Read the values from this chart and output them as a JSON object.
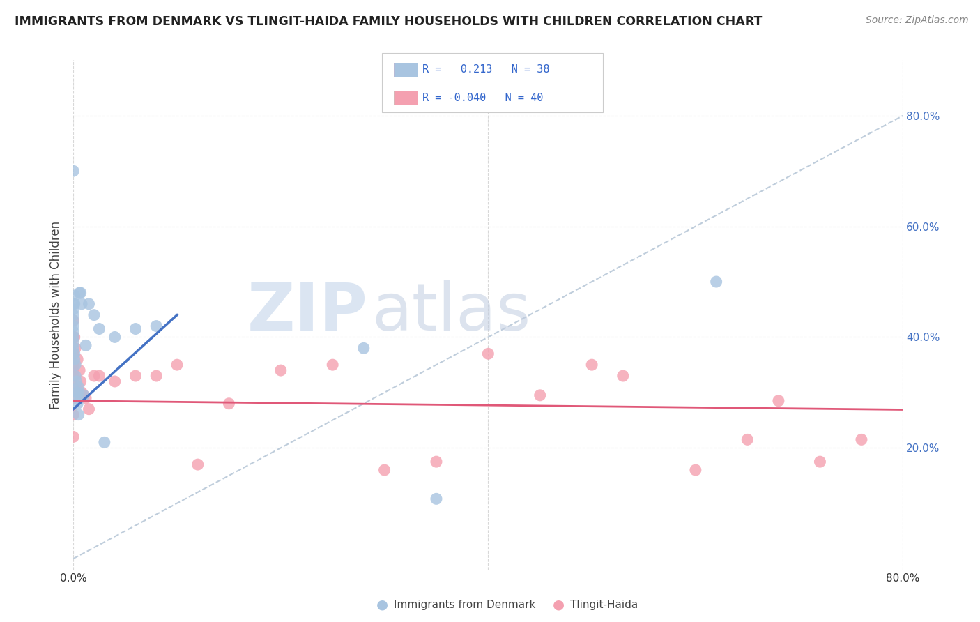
{
  "title": "IMMIGRANTS FROM DENMARK VS TLINGIT-HAIDA FAMILY HOUSEHOLDS WITH CHILDREN CORRELATION CHART",
  "source": "Source: ZipAtlas.com",
  "ylabel": "Family Households with Children",
  "legend_label1": "Immigrants from Denmark",
  "legend_label2": "Tlingit-Haida",
  "R1": 0.213,
  "N1": 38,
  "R2": -0.04,
  "N2": 40,
  "xlim": [
    0.0,
    0.8
  ],
  "ylim": [
    -0.02,
    0.9
  ],
  "color_blue": "#a8c4e0",
  "color_pink": "#f4a0b0",
  "line_color_blue": "#4472c4",
  "line_color_pink": "#e05878",
  "trendline_gray_color": "#b8c8d8",
  "watermark_zip": "ZIP",
  "watermark_atlas": "atlas",
  "grid_color": "#d8d8d8",
  "bg_color": "#ffffff",
  "blue_scatter_x": [
    0.0,
    0.0,
    0.0,
    0.0,
    0.0,
    0.0,
    0.0,
    0.0,
    0.0,
    0.0,
    0.001,
    0.001,
    0.001,
    0.001,
    0.002,
    0.002,
    0.003,
    0.003,
    0.004,
    0.004,
    0.005,
    0.005,
    0.005,
    0.006,
    0.007,
    0.008,
    0.01,
    0.012,
    0.015,
    0.02,
    0.025,
    0.03,
    0.04,
    0.06,
    0.08,
    0.28,
    0.35,
    0.62
  ],
  "blue_scatter_y": [
    0.7,
    0.46,
    0.45,
    0.44,
    0.43,
    0.42,
    0.41,
    0.4,
    0.39,
    0.38,
    0.475,
    0.46,
    0.37,
    0.36,
    0.35,
    0.33,
    0.32,
    0.3,
    0.29,
    0.28,
    0.31,
    0.3,
    0.26,
    0.48,
    0.48,
    0.46,
    0.295,
    0.385,
    0.46,
    0.44,
    0.415,
    0.21,
    0.4,
    0.415,
    0.42,
    0.38,
    0.108,
    0.5
  ],
  "pink_scatter_x": [
    0.0,
    0.0,
    0.0,
    0.0,
    0.0,
    0.0,
    0.0,
    0.0,
    0.0,
    0.0,
    0.001,
    0.002,
    0.004,
    0.006,
    0.007,
    0.008,
    0.01,
    0.012,
    0.015,
    0.02,
    0.025,
    0.04,
    0.06,
    0.08,
    0.1,
    0.12,
    0.15,
    0.2,
    0.25,
    0.3,
    0.35,
    0.4,
    0.45,
    0.5,
    0.53,
    0.6,
    0.65,
    0.68,
    0.72,
    0.76
  ],
  "pink_scatter_y": [
    0.43,
    0.4,
    0.37,
    0.35,
    0.34,
    0.33,
    0.31,
    0.29,
    0.26,
    0.22,
    0.4,
    0.38,
    0.36,
    0.34,
    0.32,
    0.3,
    0.295,
    0.29,
    0.27,
    0.33,
    0.33,
    0.32,
    0.33,
    0.33,
    0.35,
    0.17,
    0.28,
    0.34,
    0.35,
    0.16,
    0.175,
    0.37,
    0.295,
    0.35,
    0.33,
    0.16,
    0.215,
    0.285,
    0.175,
    0.215
  ]
}
